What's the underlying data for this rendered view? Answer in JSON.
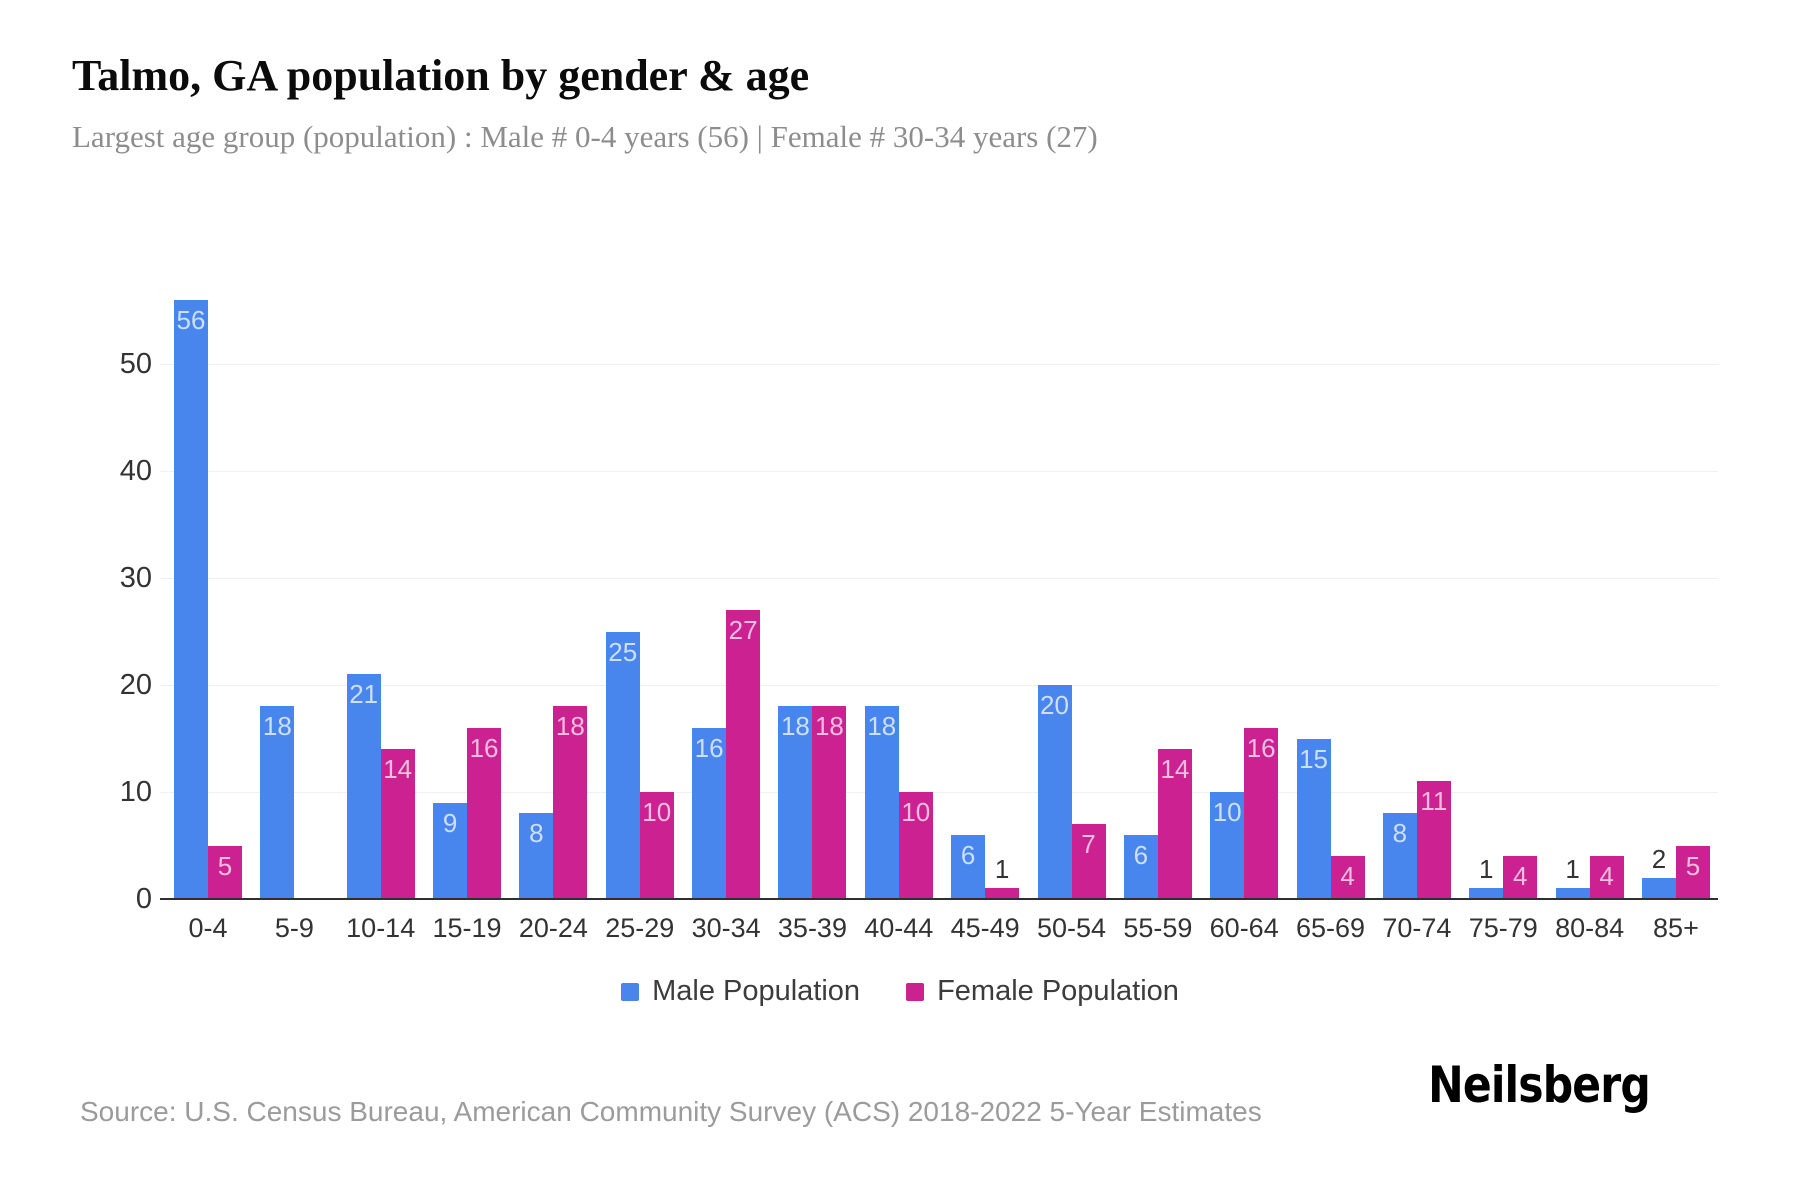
{
  "header": {
    "title": "Talmo, GA population by gender & age",
    "subtitle": "Largest age group (population) : Male # 0-4 years (56) | Female # 30-34 years (27)"
  },
  "chart_data": {
    "type": "bar",
    "title": "Talmo, GA population by gender & age",
    "xlabel": "",
    "ylabel": "",
    "categories": [
      "0-4",
      "5-9",
      "10-14",
      "15-19",
      "20-24",
      "25-29",
      "30-34",
      "35-39",
      "40-44",
      "45-49",
      "50-54",
      "55-59",
      "60-64",
      "65-69",
      "70-74",
      "75-79",
      "80-84",
      "85+"
    ],
    "series": [
      {
        "name": "Male Population",
        "color": "#4885ED",
        "label_color_inside": "#cddffb",
        "values": [
          56,
          18,
          21,
          9,
          8,
          25,
          16,
          18,
          18,
          6,
          20,
          6,
          10,
          15,
          8,
          1,
          1,
          2
        ]
      },
      {
        "name": "Female Population",
        "color": "#CC2190",
        "label_color_inside": "#f0bede",
        "values": [
          5,
          0,
          14,
          16,
          18,
          10,
          27,
          18,
          10,
          1,
          7,
          14,
          16,
          4,
          11,
          4,
          4,
          5
        ]
      }
    ],
    "ylim": [
      0,
      56
    ],
    "yticks": [
      0,
      10,
      20,
      30,
      40,
      50
    ],
    "grid": "horizontal-light",
    "legend_position": "bottom",
    "value_labels": "on bars; values under 4 shown above bar in dark text",
    "value_label_outside_color": "#333333",
    "axis_color": "#2f2f2f",
    "gridline_color": "#efefef"
  },
  "legend": {
    "items": [
      {
        "label": "Male Population"
      },
      {
        "label": "Female Population"
      }
    ]
  },
  "footer": {
    "source": "Source: U.S. Census Bureau, American Community Survey (ACS) 2018-2022 5-Year Estimates",
    "brand": "Neilsberg"
  }
}
